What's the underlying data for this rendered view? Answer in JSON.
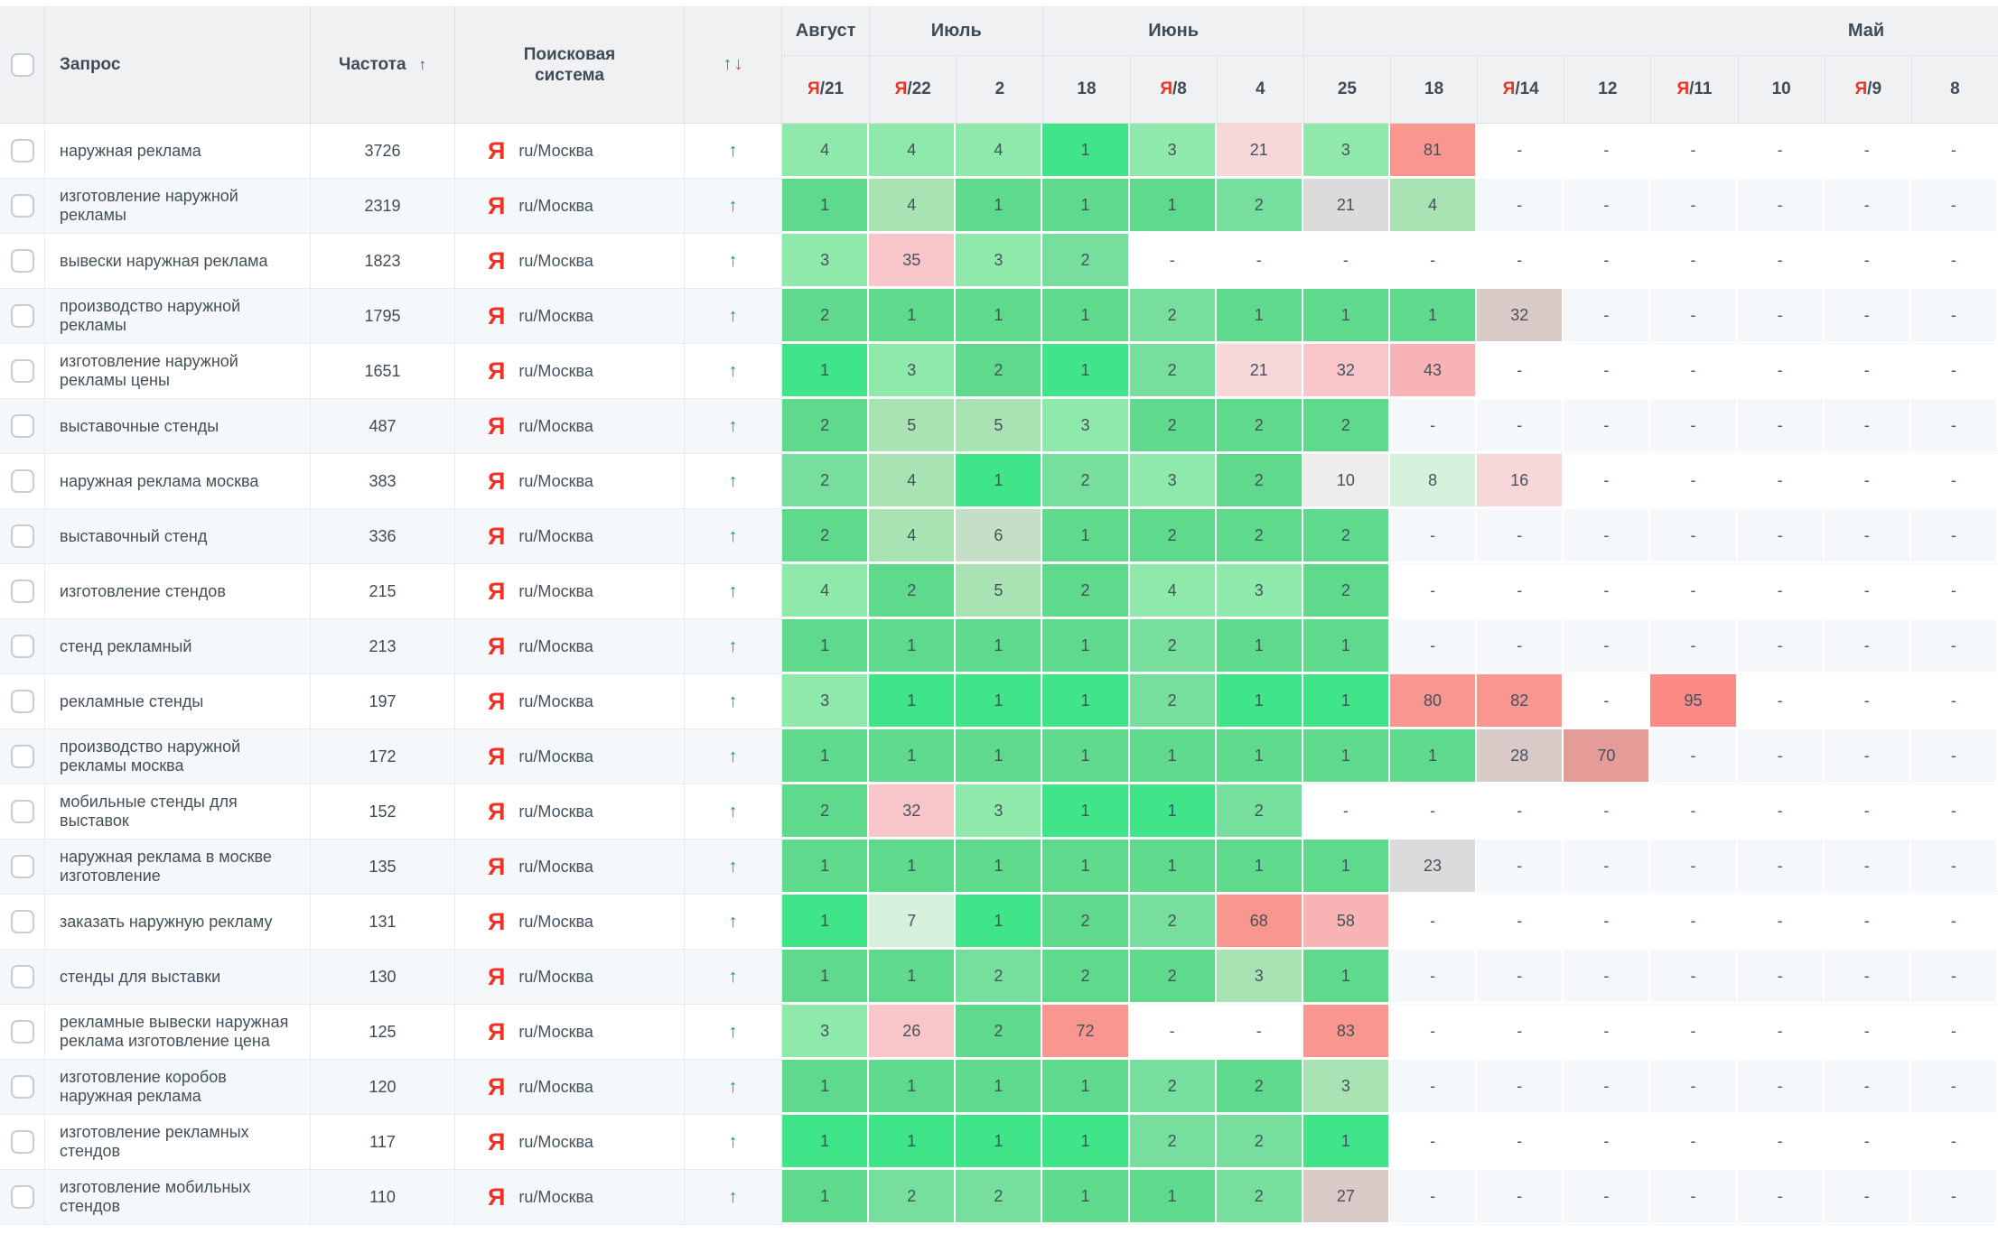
{
  "header": {
    "query_label": "Запрос",
    "frequency_label": "Частота",
    "frequency_sort_icon": "↑",
    "engine_label": "Поисковая система",
    "trend_up_icon": "↑",
    "trend_down_icon": "↓",
    "months": [
      {
        "label": "Август",
        "span": 1
      },
      {
        "label": "Июль",
        "span": 2
      },
      {
        "label": "Июнь",
        "span": 3
      },
      {
        "label": "Май",
        "span": 8,
        "label_shift_pct": 31
      }
    ],
    "dates": [
      {
        "prefix": "Я",
        "day": "21"
      },
      {
        "prefix": "Я",
        "day": "22"
      },
      {
        "day": "2"
      },
      {
        "day": "18"
      },
      {
        "prefix": "Я",
        "day": "8"
      },
      {
        "day": "4"
      },
      {
        "day": "25"
      },
      {
        "day": "18"
      },
      {
        "prefix": "Я",
        "day": "14"
      },
      {
        "day": "12"
      },
      {
        "prefix": "Я",
        "day": "11"
      },
      {
        "day": "10"
      },
      {
        "prefix": "Я",
        "day": "9"
      },
      {
        "day": "8"
      }
    ]
  },
  "engine_logo": "Я",
  "row_trend_icon": "↑",
  "empty_marker": "-",
  "colors": {
    "yandex_red": "#f03226",
    "arrow_green": "#0aa553",
    "arrow_red": "#e8453c",
    "header_bg": "#f0f1f2",
    "alt_row": "#f4f8fa"
  },
  "palette": {
    "G1": "#3fe588",
    "G2": "#5fd98c",
    "G2L": "#77df9e",
    "G3": "#8fe9ab",
    "G4": "#a9e2b3",
    "G5": "#c4dfc6",
    "G6": "#d7f2dc",
    "GRY": "#dbdbdb",
    "GRYL": "#efecec",
    "TAU": "#d9cac7",
    "PK1": "#f8d7d9",
    "PK2": "#f8c5c9",
    "PK3": "#f8b3b4",
    "RD1": "#f9968f",
    "RD2": "#fb8a85",
    "RD3": "#e59c98"
  },
  "rows": [
    {
      "query": "наружная реклама",
      "frequency": "3726",
      "engine": "ru/Москва",
      "positions": [
        {
          "v": "4",
          "t": "G3"
        },
        {
          "v": "4",
          "t": "G3"
        },
        {
          "v": "4",
          "t": "G3"
        },
        {
          "v": "1",
          "t": "G1"
        },
        {
          "v": "3",
          "t": "G3"
        },
        {
          "v": "21",
          "t": "PK1"
        },
        {
          "v": "3",
          "t": "G3"
        },
        {
          "v": "81",
          "t": "RD1"
        },
        null,
        null,
        null,
        null,
        null,
        null
      ]
    },
    {
      "query": "изготовление наружной рекламы",
      "frequency": "2319",
      "engine": "ru/Москва",
      "positions": [
        {
          "v": "1",
          "t": "G2"
        },
        {
          "v": "4",
          "t": "G4"
        },
        {
          "v": "1",
          "t": "G2"
        },
        {
          "v": "1",
          "t": "G2"
        },
        {
          "v": "1",
          "t": "G2"
        },
        {
          "v": "2",
          "t": "G2L"
        },
        {
          "v": "21",
          "t": "GRY"
        },
        {
          "v": "4",
          "t": "G4"
        },
        null,
        null,
        null,
        null,
        null,
        null
      ]
    },
    {
      "query": "вывески наружная реклама",
      "frequency": "1823",
      "engine": "ru/Москва",
      "positions": [
        {
          "v": "3",
          "t": "G3"
        },
        {
          "v": "35",
          "t": "PK2"
        },
        {
          "v": "3",
          "t": "G3"
        },
        {
          "v": "2",
          "t": "G2L"
        },
        null,
        null,
        null,
        null,
        null,
        null,
        null,
        null,
        null,
        null
      ]
    },
    {
      "query": "производство наружной рекламы",
      "frequency": "1795",
      "engine": "ru/Москва",
      "positions": [
        {
          "v": "2",
          "t": "G2"
        },
        {
          "v": "1",
          "t": "G2"
        },
        {
          "v": "1",
          "t": "G2"
        },
        {
          "v": "1",
          "t": "G2"
        },
        {
          "v": "2",
          "t": "G2L"
        },
        {
          "v": "1",
          "t": "G2"
        },
        {
          "v": "1",
          "t": "G2"
        },
        {
          "v": "1",
          "t": "G2"
        },
        {
          "v": "32",
          "t": "TAU"
        },
        null,
        null,
        null,
        null,
        null
      ]
    },
    {
      "query": "изготовление наружной рекламы цены",
      "frequency": "1651",
      "engine": "ru/Москва",
      "positions": [
        {
          "v": "1",
          "t": "G1"
        },
        {
          "v": "3",
          "t": "G3"
        },
        {
          "v": "2",
          "t": "G2"
        },
        {
          "v": "1",
          "t": "G1"
        },
        {
          "v": "2",
          "t": "G2L"
        },
        {
          "v": "21",
          "t": "PK1"
        },
        {
          "v": "32",
          "t": "PK2"
        },
        {
          "v": "43",
          "t": "PK3"
        },
        null,
        null,
        null,
        null,
        null,
        null
      ]
    },
    {
      "query": "выставочные стенды",
      "frequency": "487",
      "engine": "ru/Москва",
      "positions": [
        {
          "v": "2",
          "t": "G2"
        },
        {
          "v": "5",
          "t": "G4"
        },
        {
          "v": "5",
          "t": "G4"
        },
        {
          "v": "3",
          "t": "G3"
        },
        {
          "v": "2",
          "t": "G2"
        },
        {
          "v": "2",
          "t": "G2"
        },
        {
          "v": "2",
          "t": "G2"
        },
        null,
        null,
        null,
        null,
        null,
        null,
        null
      ]
    },
    {
      "query": "наружная реклама москва",
      "frequency": "383",
      "engine": "ru/Москва",
      "positions": [
        {
          "v": "2",
          "t": "G2L"
        },
        {
          "v": "4",
          "t": "G4"
        },
        {
          "v": "1",
          "t": "G1"
        },
        {
          "v": "2",
          "t": "G2L"
        },
        {
          "v": "3",
          "t": "G3"
        },
        {
          "v": "2",
          "t": "G2"
        },
        {
          "v": "10",
          "t": "GRYL"
        },
        {
          "v": "8",
          "t": "G6"
        },
        {
          "v": "16",
          "t": "PK1"
        },
        null,
        null,
        null,
        null,
        null
      ]
    },
    {
      "query": "выставочный стенд",
      "frequency": "336",
      "engine": "ru/Москва",
      "positions": [
        {
          "v": "2",
          "t": "G2"
        },
        {
          "v": "4",
          "t": "G4"
        },
        {
          "v": "6",
          "t": "G5"
        },
        {
          "v": "1",
          "t": "G2"
        },
        {
          "v": "2",
          "t": "G2"
        },
        {
          "v": "2",
          "t": "G2"
        },
        {
          "v": "2",
          "t": "G2"
        },
        null,
        null,
        null,
        null,
        null,
        null,
        null
      ]
    },
    {
      "query": "изготовление стендов",
      "frequency": "215",
      "engine": "ru/Москва",
      "positions": [
        {
          "v": "4",
          "t": "G3"
        },
        {
          "v": "2",
          "t": "G2"
        },
        {
          "v": "5",
          "t": "G4"
        },
        {
          "v": "2",
          "t": "G2"
        },
        {
          "v": "4",
          "t": "G3"
        },
        {
          "v": "3",
          "t": "G3"
        },
        {
          "v": "2",
          "t": "G2"
        },
        null,
        null,
        null,
        null,
        null,
        null,
        null
      ]
    },
    {
      "query": "стенд рекламный",
      "frequency": "213",
      "engine": "ru/Москва",
      "positions": [
        {
          "v": "1",
          "t": "G2"
        },
        {
          "v": "1",
          "t": "G2"
        },
        {
          "v": "1",
          "t": "G2"
        },
        {
          "v": "1",
          "t": "G2"
        },
        {
          "v": "2",
          "t": "G2L"
        },
        {
          "v": "1",
          "t": "G2"
        },
        {
          "v": "1",
          "t": "G2"
        },
        null,
        null,
        null,
        null,
        null,
        null,
        null
      ]
    },
    {
      "query": "рекламные стенды",
      "frequency": "197",
      "engine": "ru/Москва",
      "positions": [
        {
          "v": "3",
          "t": "G3"
        },
        {
          "v": "1",
          "t": "G1"
        },
        {
          "v": "1",
          "t": "G1"
        },
        {
          "v": "1",
          "t": "G1"
        },
        {
          "v": "2",
          "t": "G2L"
        },
        {
          "v": "1",
          "t": "G1"
        },
        {
          "v": "1",
          "t": "G1"
        },
        {
          "v": "80",
          "t": "RD1"
        },
        {
          "v": "82",
          "t": "RD1"
        },
        null,
        {
          "v": "95",
          "t": "RD2"
        },
        null,
        null,
        null
      ]
    },
    {
      "query": "производство наружной рекламы москва",
      "frequency": "172",
      "engine": "ru/Москва",
      "positions": [
        {
          "v": "1",
          "t": "G2"
        },
        {
          "v": "1",
          "t": "G2"
        },
        {
          "v": "1",
          "t": "G2"
        },
        {
          "v": "1",
          "t": "G2"
        },
        {
          "v": "1",
          "t": "G2"
        },
        {
          "v": "1",
          "t": "G2"
        },
        {
          "v": "1",
          "t": "G2"
        },
        {
          "v": "1",
          "t": "G2"
        },
        {
          "v": "28",
          "t": "TAU"
        },
        {
          "v": "70",
          "t": "RD3"
        },
        null,
        null,
        null,
        null
      ]
    },
    {
      "query": "мобильные стенды для выставок",
      "frequency": "152",
      "engine": "ru/Москва",
      "positions": [
        {
          "v": "2",
          "t": "G2"
        },
        {
          "v": "32",
          "t": "PK2"
        },
        {
          "v": "3",
          "t": "G3"
        },
        {
          "v": "1",
          "t": "G1"
        },
        {
          "v": "1",
          "t": "G1"
        },
        {
          "v": "2",
          "t": "G2L"
        },
        null,
        null,
        null,
        null,
        null,
        null,
        null,
        null
      ]
    },
    {
      "query": "наружная реклама в москве изготовление",
      "frequency": "135",
      "engine": "ru/Москва",
      "positions": [
        {
          "v": "1",
          "t": "G2"
        },
        {
          "v": "1",
          "t": "G2"
        },
        {
          "v": "1",
          "t": "G2"
        },
        {
          "v": "1",
          "t": "G2"
        },
        {
          "v": "1",
          "t": "G2"
        },
        {
          "v": "1",
          "t": "G2"
        },
        {
          "v": "1",
          "t": "G2"
        },
        {
          "v": "23",
          "t": "GRY"
        },
        null,
        null,
        null,
        null,
        null,
        null
      ]
    },
    {
      "query": "заказать наружную рекламу",
      "frequency": "131",
      "engine": "ru/Москва",
      "positions": [
        {
          "v": "1",
          "t": "G1"
        },
        {
          "v": "7",
          "t": "G6"
        },
        {
          "v": "1",
          "t": "G1"
        },
        {
          "v": "2",
          "t": "G2"
        },
        {
          "v": "2",
          "t": "G2L"
        },
        {
          "v": "68",
          "t": "RD1"
        },
        {
          "v": "58",
          "t": "PK3"
        },
        null,
        null,
        null,
        null,
        null,
        null,
        null
      ]
    },
    {
      "query": "стенды для выставки",
      "frequency": "130",
      "engine": "ru/Москва",
      "positions": [
        {
          "v": "1",
          "t": "G2"
        },
        {
          "v": "1",
          "t": "G2"
        },
        {
          "v": "2",
          "t": "G2L"
        },
        {
          "v": "2",
          "t": "G2"
        },
        {
          "v": "2",
          "t": "G2"
        },
        {
          "v": "3",
          "t": "G4"
        },
        {
          "v": "1",
          "t": "G2"
        },
        null,
        null,
        null,
        null,
        null,
        null,
        null
      ]
    },
    {
      "query": "рекламные вывески наружная реклама изготовление цена",
      "frequency": "125",
      "engine": "ru/Москва",
      "positions": [
        {
          "v": "3",
          "t": "G3"
        },
        {
          "v": "26",
          "t": "PK2"
        },
        {
          "v": "2",
          "t": "G2"
        },
        {
          "v": "72",
          "t": "RD1"
        },
        null,
        null,
        {
          "v": "83",
          "t": "RD1"
        },
        null,
        null,
        null,
        null,
        null,
        null,
        null
      ]
    },
    {
      "query": "изготовление коробов наружная реклама",
      "frequency": "120",
      "engine": "ru/Москва",
      "positions": [
        {
          "v": "1",
          "t": "G2"
        },
        {
          "v": "1",
          "t": "G2"
        },
        {
          "v": "1",
          "t": "G2"
        },
        {
          "v": "1",
          "t": "G2"
        },
        {
          "v": "2",
          "t": "G2L"
        },
        {
          "v": "2",
          "t": "G2"
        },
        {
          "v": "3",
          "t": "G4"
        },
        null,
        null,
        null,
        null,
        null,
        null,
        null
      ]
    },
    {
      "query": "изготовление рекламных стендов",
      "frequency": "117",
      "engine": "ru/Москва",
      "positions": [
        {
          "v": "1",
          "t": "G1"
        },
        {
          "v": "1",
          "t": "G1"
        },
        {
          "v": "1",
          "t": "G1"
        },
        {
          "v": "1",
          "t": "G1"
        },
        {
          "v": "2",
          "t": "G2L"
        },
        {
          "v": "2",
          "t": "G2L"
        },
        {
          "v": "1",
          "t": "G1"
        },
        null,
        null,
        null,
        null,
        null,
        null,
        null
      ]
    },
    {
      "query": "изготовление мобильных стендов",
      "frequency": "110",
      "engine": "ru/Москва",
      "positions": [
        {
          "v": "1",
          "t": "G2"
        },
        {
          "v": "2",
          "t": "G2L"
        },
        {
          "v": "2",
          "t": "G2L"
        },
        {
          "v": "1",
          "t": "G2"
        },
        {
          "v": "1",
          "t": "G2"
        },
        {
          "v": "2",
          "t": "G2L"
        },
        {
          "v": "27",
          "t": "TAU"
        },
        null,
        null,
        null,
        null,
        null,
        null,
        null
      ]
    }
  ]
}
